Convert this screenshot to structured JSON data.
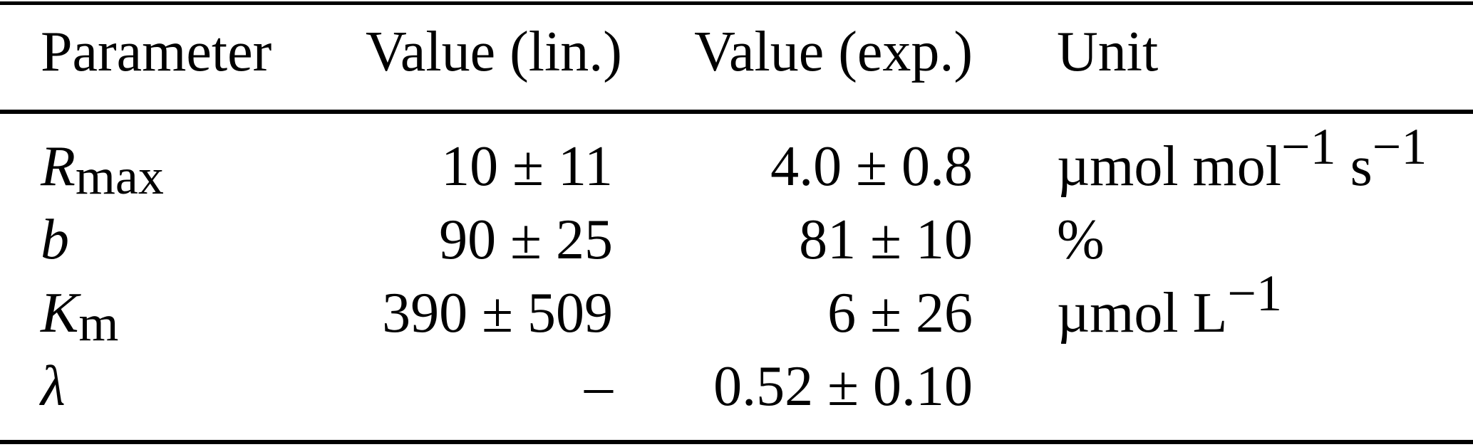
{
  "colors": {
    "background": "#ffffff",
    "text": "#000000",
    "rule": "#000000"
  },
  "table": {
    "columns": [
      {
        "label": "Parameter",
        "align": "left"
      },
      {
        "label": "Value (lin.)",
        "align": "right"
      },
      {
        "label": "Value (exp.)",
        "align": "right"
      },
      {
        "label": "Unit",
        "align": "left"
      }
    ],
    "rows": [
      {
        "parameter": [
          {
            "t": "R",
            "italic": true
          },
          {
            "t": "max",
            "sub": true
          }
        ],
        "parameter_plain": "R_max",
        "value_lin": "10 ± 11",
        "value_exp": "4.0 ± 0.8",
        "unit": [
          {
            "t": "µmol mol"
          },
          {
            "t": "−1",
            "sup": true
          },
          {
            "t": " s"
          },
          {
            "t": "−1",
            "sup": true
          }
        ],
        "unit_plain": "µmol mol^-1 s^-1"
      },
      {
        "parameter": [
          {
            "t": "b",
            "italic": true
          }
        ],
        "parameter_plain": "b",
        "value_lin": "90 ± 25",
        "value_exp": "81 ± 10",
        "unit": [
          {
            "t": "%"
          }
        ],
        "unit_plain": "%"
      },
      {
        "parameter": [
          {
            "t": "K",
            "italic": true
          },
          {
            "t": "m",
            "sub": true
          }
        ],
        "parameter_plain": "K_m",
        "value_lin": "390 ± 509",
        "value_exp": "6 ± 26",
        "unit": [
          {
            "t": "µmol L"
          },
          {
            "t": "−1",
            "sup": true
          }
        ],
        "unit_plain": "µmol L^-1"
      },
      {
        "parameter": [
          {
            "t": "λ",
            "italic": true
          }
        ],
        "parameter_plain": "λ",
        "value_lin": "–",
        "value_exp": "0.52 ± 0.10",
        "unit": [],
        "unit_plain": ""
      }
    ]
  }
}
